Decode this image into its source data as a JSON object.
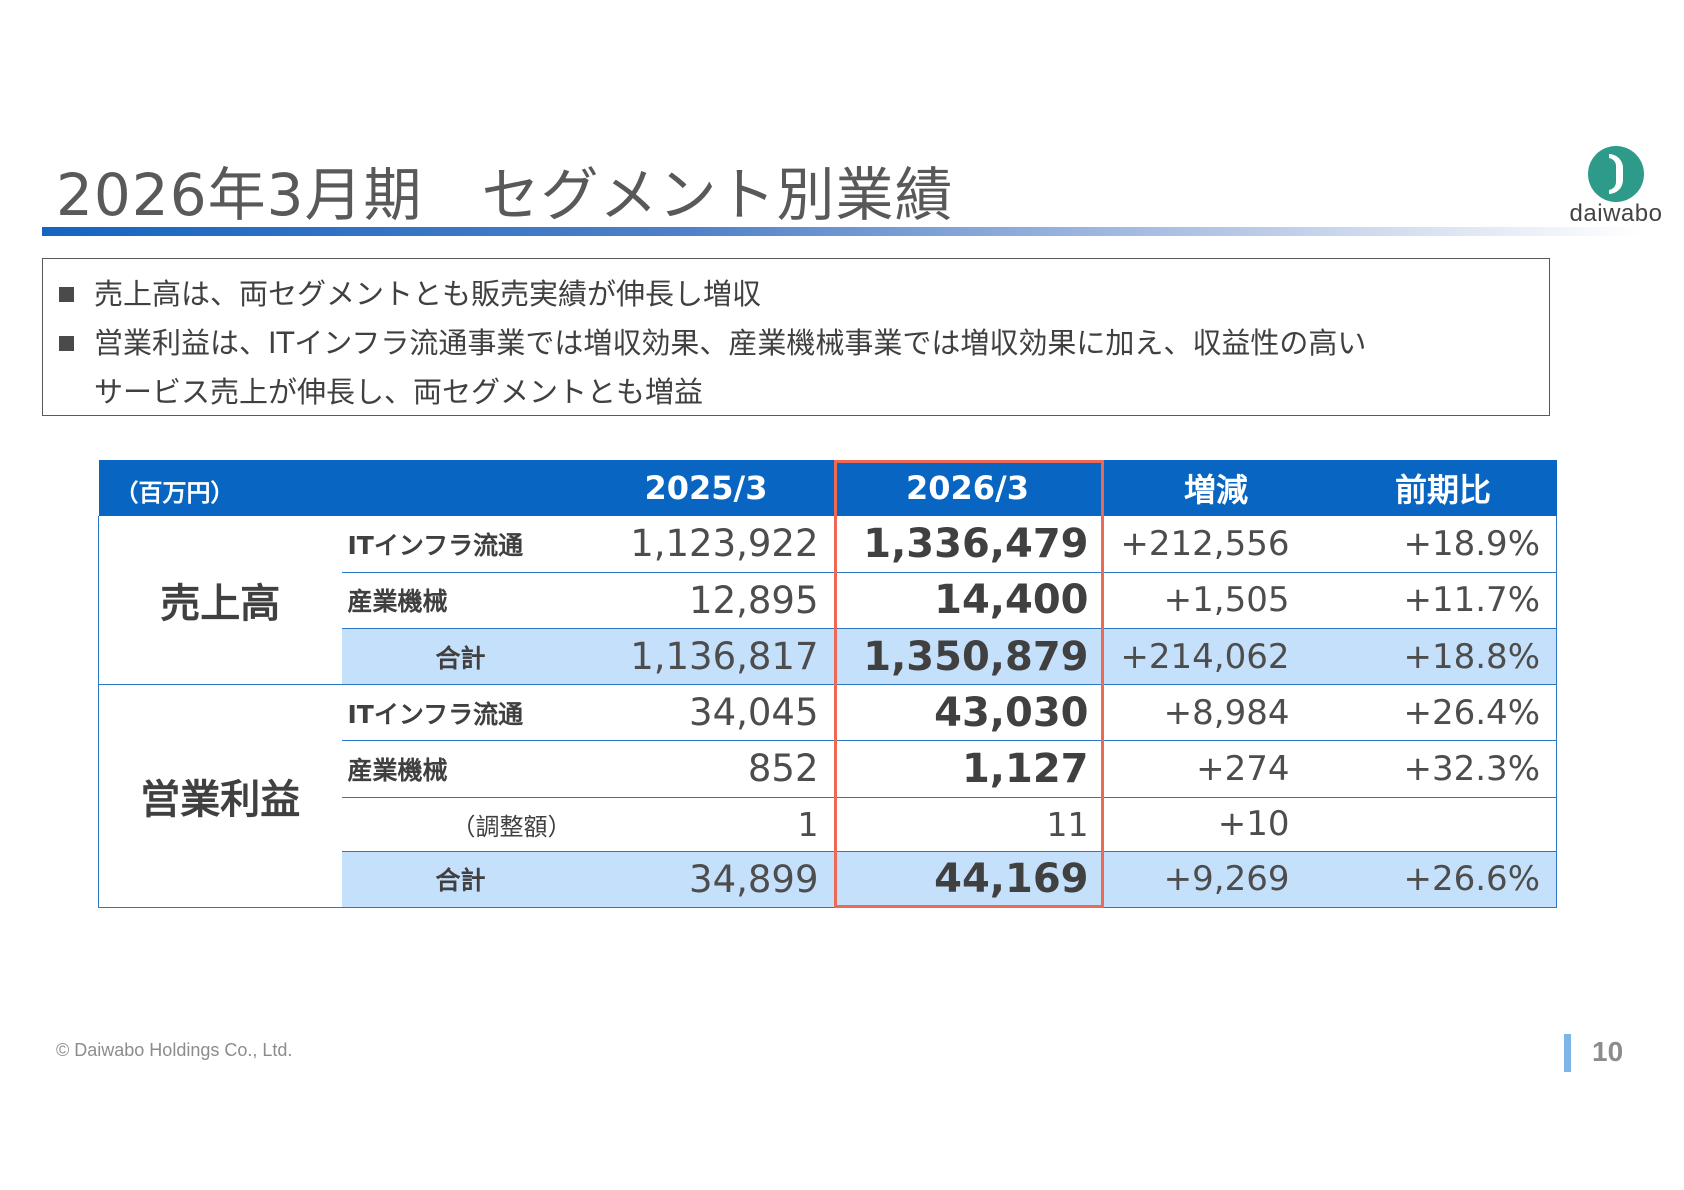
{
  "header": {
    "title": "2026年3月期　セグメント別業績",
    "logo_text": "daiwabo"
  },
  "summary": {
    "line1": "売上高は、両セグメントとも販売実績が伸長し増収",
    "line2": "営業利益は、ITインフラ流通事業では増収効果、産業機械事業では増収効果に加え、収益性の高い",
    "line3": "サービス売上が伸長し、両セグメントとも増益"
  },
  "table": {
    "unit": "（百万円）",
    "headers": {
      "prev": "2025/3",
      "curr": "2026/3",
      "diff": "増減",
      "ratio": "前期比"
    },
    "sales": {
      "group": "売上高",
      "rows": [
        {
          "label": "ITインフラ流通",
          "prev": "1,123,922",
          "curr": "1,336,479",
          "diff": "+212,556",
          "ratio": "+18.9%"
        },
        {
          "label": "産業機械",
          "prev": "12,895",
          "curr": "14,400",
          "diff": "+1,505",
          "ratio": "+11.7%"
        },
        {
          "label": "合計",
          "prev": "1,136,817",
          "curr": "1,350,879",
          "diff": "+214,062",
          "ratio": "+18.8%"
        }
      ]
    },
    "op_income": {
      "group": "営業利益",
      "rows": [
        {
          "label": "ITインフラ流通",
          "prev": "34,045",
          "curr": "43,030",
          "diff": "+8,984",
          "ratio": "+26.4%"
        },
        {
          "label": "産業機械",
          "prev": "852",
          "curr": "1,127",
          "diff": "+274",
          "ratio": "+32.3%"
        },
        {
          "label": "（調整額）",
          "prev": "1",
          "curr": "11",
          "diff": "+10",
          "ratio": ""
        },
        {
          "label": "合計",
          "prev": "34,899",
          "curr": "44,169",
          "diff": "+9,269",
          "ratio": "+26.6%"
        }
      ]
    }
  },
  "footer": {
    "copyright": "© Daiwabo Holdings Co., Ltd.",
    "page": "10"
  },
  "colors": {
    "header_blue": "#0865c1",
    "total_row": "#c5e0fa",
    "highlight": "#ec6a55",
    "logo_green": "#2e9b8a"
  }
}
